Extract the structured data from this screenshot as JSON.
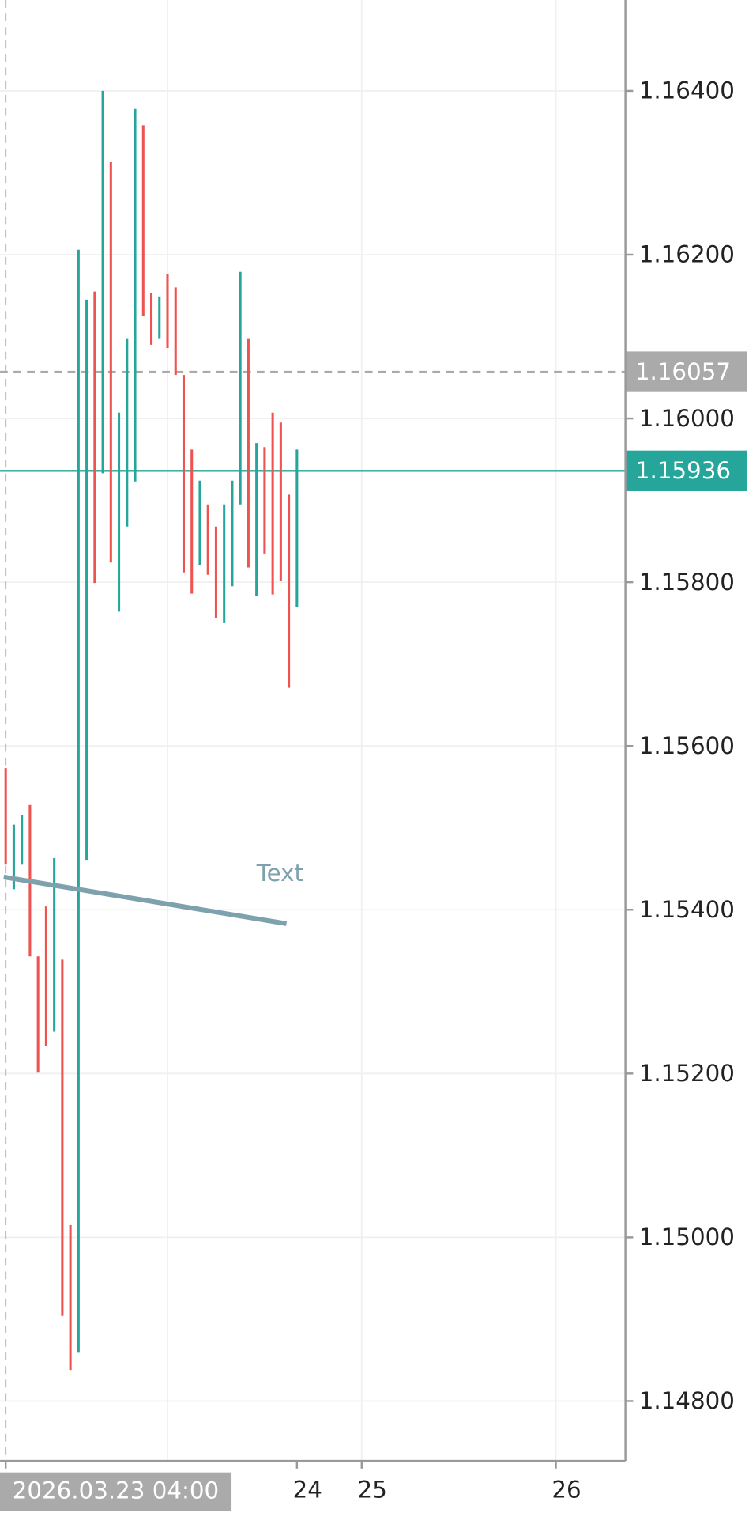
{
  "chart_data": {
    "type": "range_bar",
    "up_color": "#26a69a",
    "down_color": "#ef5350",
    "bars": [
      {
        "dir": "down",
        "high": 1.15573,
        "low": 1.15455
      },
      {
        "dir": "up",
        "high": 1.15504,
        "low": 1.15425
      },
      {
        "dir": "up",
        "high": 1.15516,
        "low": 1.15455
      },
      {
        "dir": "down",
        "high": 1.15528,
        "low": 1.15343
      },
      {
        "dir": "down",
        "high": 1.15343,
        "low": 1.15201
      },
      {
        "dir": "down",
        "high": 1.15404,
        "low": 1.15234
      },
      {
        "dir": "up",
        "high": 1.15463,
        "low": 1.15251
      },
      {
        "dir": "down",
        "high": 1.15339,
        "low": 1.14904
      },
      {
        "dir": "down",
        "high": 1.15015,
        "low": 1.14838
      },
      {
        "dir": "up",
        "high": 1.16206,
        "low": 1.14859
      },
      {
        "dir": "up",
        "high": 1.16145,
        "low": 1.15461
      },
      {
        "dir": "down",
        "high": 1.16155,
        "low": 1.15799
      },
      {
        "dir": "up",
        "high": 1.164,
        "low": 1.15933
      },
      {
        "dir": "down",
        "high": 1.16313,
        "low": 1.15824
      },
      {
        "dir": "up",
        "high": 1.16007,
        "low": 1.15764
      },
      {
        "dir": "up",
        "high": 1.16098,
        "low": 1.15868
      },
      {
        "dir": "up",
        "high": 1.16378,
        "low": 1.15923
      },
      {
        "dir": "down",
        "high": 1.16358,
        "low": 1.16125
      },
      {
        "dir": "down",
        "high": 1.16153,
        "low": 1.1609
      },
      {
        "dir": "up",
        "high": 1.16149,
        "low": 1.16098
      },
      {
        "dir": "down",
        "high": 1.16176,
        "low": 1.16086
      },
      {
        "dir": "down",
        "high": 1.1616,
        "low": 1.16053
      },
      {
        "dir": "down",
        "high": 1.16053,
        "low": 1.15812
      },
      {
        "dir": "down",
        "high": 1.15962,
        "low": 1.15786
      },
      {
        "dir": "up",
        "high": 1.15924,
        "low": 1.15821
      },
      {
        "dir": "down",
        "high": 1.15895,
        "low": 1.15809
      },
      {
        "dir": "down",
        "high": 1.15868,
        "low": 1.15756
      },
      {
        "dir": "up",
        "high": 1.15895,
        "low": 1.1575
      },
      {
        "dir": "up",
        "high": 1.15924,
        "low": 1.15795
      },
      {
        "dir": "up",
        "high": 1.16179,
        "low": 1.15895
      },
      {
        "dir": "down",
        "high": 1.16098,
        "low": 1.15818
      },
      {
        "dir": "up",
        "high": 1.1597,
        "low": 1.15783
      },
      {
        "dir": "down",
        "high": 1.15965,
        "low": 1.15835
      },
      {
        "dir": "down",
        "high": 1.16007,
        "low": 1.15785
      },
      {
        "dir": "down",
        "high": 1.15995,
        "low": 1.15802
      },
      {
        "dir": "down",
        "high": 1.15907,
        "low": 1.15671
      },
      {
        "dir": "up",
        "high": 1.15962,
        "low": 1.1577
      }
    ],
    "xlim": [
      -0.7,
      76.6
    ],
    "xticks": [
      {
        "value": 0,
        "label": "2026.03.23 04:00"
      },
      {
        "value": 36,
        "label": "24"
      },
      {
        "value": 44,
        "label": "25"
      },
      {
        "value": 68,
        "label": "26"
      }
    ],
    "xgrid": [
      20,
      44,
      68
    ],
    "ylim": [
      1.14727,
      1.16511
    ],
    "yticks": [
      {
        "value": 1.164,
        "label": "1.16400"
      },
      {
        "value": 1.162,
        "label": "1.16200"
      },
      {
        "value": 1.16,
        "label": "1.16000"
      },
      {
        "value": 1.158,
        "label": "1.15800"
      },
      {
        "value": 1.156,
        "label": "1.15600"
      },
      {
        "value": 1.154,
        "label": "1.15400"
      },
      {
        "value": 1.152,
        "label": "1.15200"
      },
      {
        "value": 1.15,
        "label": "1.15000"
      },
      {
        "value": 1.148,
        "label": "1.14800"
      }
    ],
    "grid": true,
    "price_lines": [
      {
        "value": 1.16057,
        "label": "1.16057",
        "color": "#aaaaaa",
        "dashed": true
      },
      {
        "value": 1.15936,
        "label": "1.15936",
        "color": "#26a69a",
        "dashed": false
      }
    ],
    "trend_line": {
      "x": [
        -0.24,
        34.7
      ],
      "y": [
        1.1544,
        1.15383
      ],
      "color": "#7ea2ad"
    },
    "annotation": {
      "text": "Text",
      "x": 33.9,
      "y": 1.15443,
      "color": "#7ea2ad"
    }
  }
}
